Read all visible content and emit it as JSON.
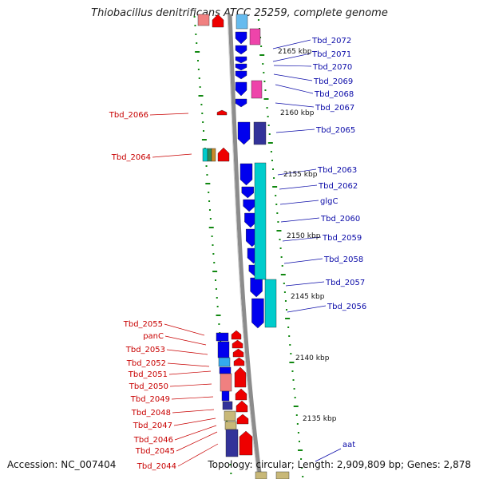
{
  "title": "Thiobacillus denitrificans ATCC 25259, complete genome",
  "footer": {
    "accession": "Accession: NC_007404",
    "topology": "Topology: circular; Length: 2,909,809 bp; Genes: 2,878"
  },
  "colors": {
    "forward": "#0000ee",
    "reverse": "#ee0000",
    "pink": "#ee44aa",
    "navy": "#333399",
    "cyan": "#00cccc",
    "salmon": "#f08080",
    "khaki": "#c8b878",
    "label_blue": "#0a0aa8",
    "label_red": "#c80000",
    "tick_green": "#118811"
  },
  "scale_labels": [
    "2165 kbp",
    "2160 kbp",
    "2155 kbp",
    "2150 kbp",
    "2145 kbp",
    "2140 kbp",
    "2135 kbp"
  ],
  "forward_genes": [
    "Tbd_2072",
    "Tbd_2071",
    "Tbd_2070",
    "Tbd_2069",
    "Tbd_2068",
    "Tbd_2067",
    "Tbd_2065",
    "Tbd_2063",
    "Tbd_2062",
    "glgC",
    "Tbd_2060",
    "Tbd_2059",
    "Tbd_2058",
    "Tbd_2057",
    "Tbd_2056",
    "aat"
  ],
  "reverse_genes": [
    "Tbd_2066",
    "Tbd_2064",
    "Tbd_2055",
    "panC",
    "Tbd_2053",
    "Tbd_2052",
    "Tbd_2051",
    "Tbd_2050",
    "Tbd_2049",
    "Tbd_2048",
    "Tbd_2047",
    "Tbd_2046",
    "Tbd_2045",
    "Tbd_2044"
  ]
}
